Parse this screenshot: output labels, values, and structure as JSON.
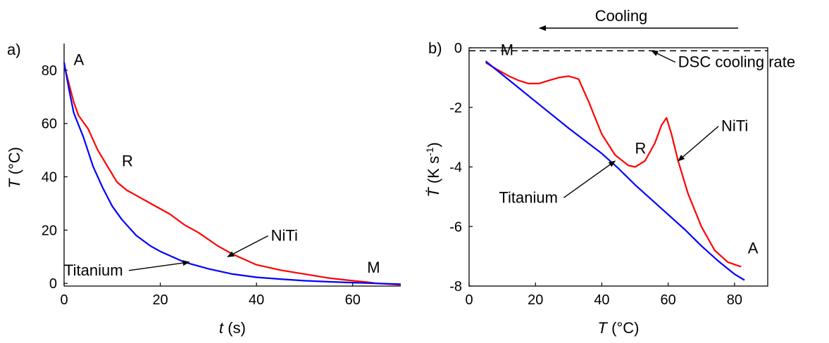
{
  "chart_data": [
    {
      "panel_label": "a)",
      "type": "line",
      "xlabel": "t (s)",
      "xlabel_var": "t",
      "xlabel_unit": " (s)",
      "ylabel": "T (°C)",
      "ylabel_var": "T",
      "ylabel_unit": " (°C)",
      "xlim": [
        0,
        70
      ],
      "ylim": [
        -1,
        90
      ],
      "xticks": [
        0,
        20,
        40,
        60
      ],
      "yticks": [
        0,
        20,
        40,
        60,
        80
      ],
      "grid": false,
      "series": [
        {
          "name": "NiTi",
          "color": "#ff0000",
          "points": [
            [
              0,
              82
            ],
            [
              1,
              75
            ],
            [
              2,
              68
            ],
            [
              3,
              63
            ],
            [
              5,
              58
            ],
            [
              7,
              50
            ],
            [
              9,
              44
            ],
            [
              11,
              38
            ],
            [
              13,
              35
            ],
            [
              15,
              33
            ],
            [
              18,
              30
            ],
            [
              22,
              26
            ],
            [
              25,
              22
            ],
            [
              28,
              19
            ],
            [
              32,
              14
            ],
            [
              35,
              11
            ],
            [
              40,
              7
            ],
            [
              45,
              5
            ],
            [
              50,
              3.5
            ],
            [
              55,
              2
            ],
            [
              60,
              1
            ],
            [
              63,
              0.5
            ],
            [
              65,
              0
            ],
            [
              70,
              -0.5
            ]
          ]
        },
        {
          "name": "Titanium",
          "color": "#0000ff",
          "points": [
            [
              0,
              83
            ],
            [
              1,
              73
            ],
            [
              2,
              64
            ],
            [
              4,
              55
            ],
            [
              6,
              44
            ],
            [
              8,
              36
            ],
            [
              10,
              29
            ],
            [
              12,
              24
            ],
            [
              15,
              18
            ],
            [
              18,
              14
            ],
            [
              20,
              12
            ],
            [
              25,
              8
            ],
            [
              30,
              5.5
            ],
            [
              35,
              3.5
            ],
            [
              40,
              2.3
            ],
            [
              45,
              1.6
            ],
            [
              50,
              1
            ],
            [
              55,
              0.6
            ],
            [
              60,
              0.3
            ],
            [
              65,
              0
            ],
            [
              70,
              -0.3
            ]
          ]
        }
      ],
      "annotations": [
        {
          "text": "A",
          "x": 2,
          "y": 82
        },
        {
          "text": "R",
          "x": 12,
          "y": 44
        },
        {
          "text": "M",
          "x": 63,
          "y": 4
        },
        {
          "text": "NiTi",
          "x": 43,
          "y": 16,
          "arrow_to": [
            34,
            10
          ]
        },
        {
          "text": "Titanium",
          "x": 0,
          "y": 3,
          "arrow_to": [
            26,
            8
          ]
        }
      ]
    },
    {
      "panel_label": "b)",
      "type": "line",
      "xlabel": "T (°C)",
      "xlabel_var": "T",
      "xlabel_unit": " (°C)",
      "ylabel": "Ṫ (K s⁻¹)",
      "ylabel_var": "Ṫ",
      "ylabel_unit": " (K s",
      "ylabel_exp": "-1",
      "ylabel_close": ")",
      "xlim": [
        0,
        90
      ],
      "ylim": [
        -8,
        0
      ],
      "xticks": [
        0,
        20,
        40,
        60,
        80
      ],
      "yticks": [
        0,
        -2,
        -4,
        -6,
        -8
      ],
      "grid": false,
      "reference_line": {
        "label": "DSC cooling rate",
        "y": -0.1,
        "style": "dashed"
      },
      "direction_label": "Cooling",
      "series": [
        {
          "name": "NiTi",
          "color": "#ff0000",
          "points": [
            [
              5,
              -0.5
            ],
            [
              8,
              -0.7
            ],
            [
              12,
              -0.95
            ],
            [
              15,
              -1.1
            ],
            [
              18,
              -1.2
            ],
            [
              21,
              -1.2
            ],
            [
              24,
              -1.1
            ],
            [
              27,
              -1.0
            ],
            [
              30,
              -0.95
            ],
            [
              33,
              -1.05
            ],
            [
              36,
              -1.8
            ],
            [
              40,
              -2.9
            ],
            [
              44,
              -3.6
            ],
            [
              48,
              -3.95
            ],
            [
              50,
              -4.0
            ],
            [
              53,
              -3.8
            ],
            [
              56,
              -3.2
            ],
            [
              58,
              -2.6
            ],
            [
              59.5,
              -2.35
            ],
            [
              61,
              -2.9
            ],
            [
              63,
              -3.8
            ],
            [
              66,
              -4.9
            ],
            [
              70,
              -6.0
            ],
            [
              74,
              -6.8
            ],
            [
              78,
              -7.2
            ],
            [
              82,
              -7.35
            ]
          ]
        },
        {
          "name": "Titanium",
          "color": "#0000ff",
          "points": [
            [
              5,
              -0.45
            ],
            [
              10,
              -0.9
            ],
            [
              20,
              -1.8
            ],
            [
              30,
              -2.7
            ],
            [
              40,
              -3.55
            ],
            [
              45,
              -4.05
            ],
            [
              50,
              -4.6
            ],
            [
              55,
              -5.1
            ],
            [
              60,
              -5.6
            ],
            [
              65,
              -6.1
            ],
            [
              70,
              -6.65
            ],
            [
              75,
              -7.15
            ],
            [
              80,
              -7.6
            ],
            [
              83,
              -7.8
            ]
          ]
        }
      ],
      "annotations": [
        {
          "text": "M",
          "x": 9.5,
          "y": -0.25
        },
        {
          "text": "R",
          "x": 50,
          "y": -3.55
        },
        {
          "text": "A",
          "x": 84,
          "y": -6.9
        },
        {
          "text": "NiTi",
          "x": 76,
          "y": -2.8,
          "arrow_to": [
            63,
            -3.8
          ]
        },
        {
          "text": "Titanium",
          "x": 9,
          "y": -5.2,
          "arrow_to": [
            44,
            -3.8
          ]
        },
        {
          "text": "DSC cooling rate",
          "x": 63,
          "y": -0.65,
          "arrow_to": [
            55,
            -0.1
          ]
        }
      ]
    }
  ]
}
